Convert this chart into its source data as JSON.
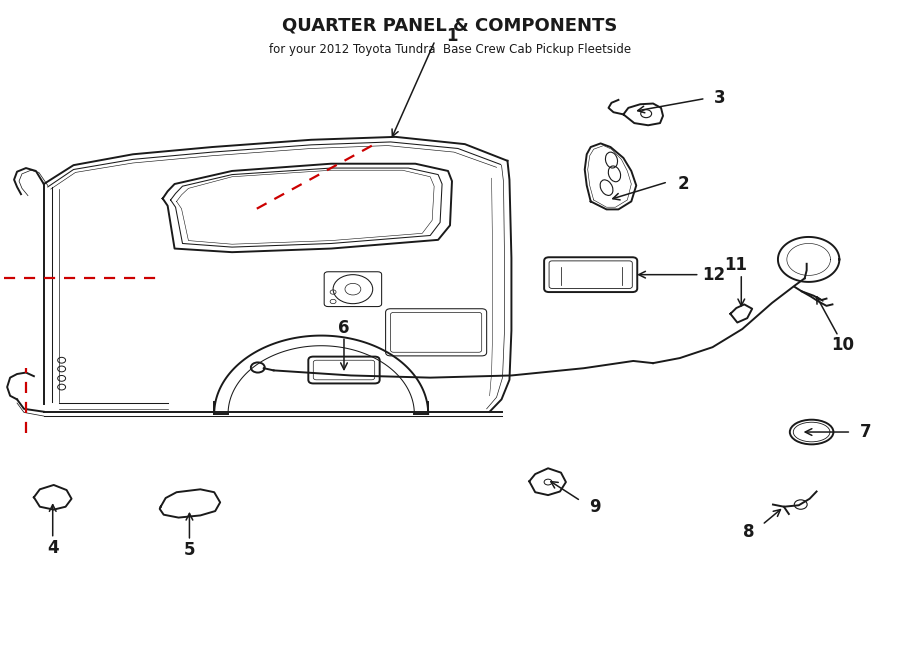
{
  "title": "QUARTER PANEL & COMPONENTS",
  "subtitle": "for your 2012 Toyota Tundra  Base Crew Cab Pickup Fleetside",
  "bg_color": "#ffffff",
  "line_color": "#1a1a1a",
  "red_color": "#cc0000"
}
